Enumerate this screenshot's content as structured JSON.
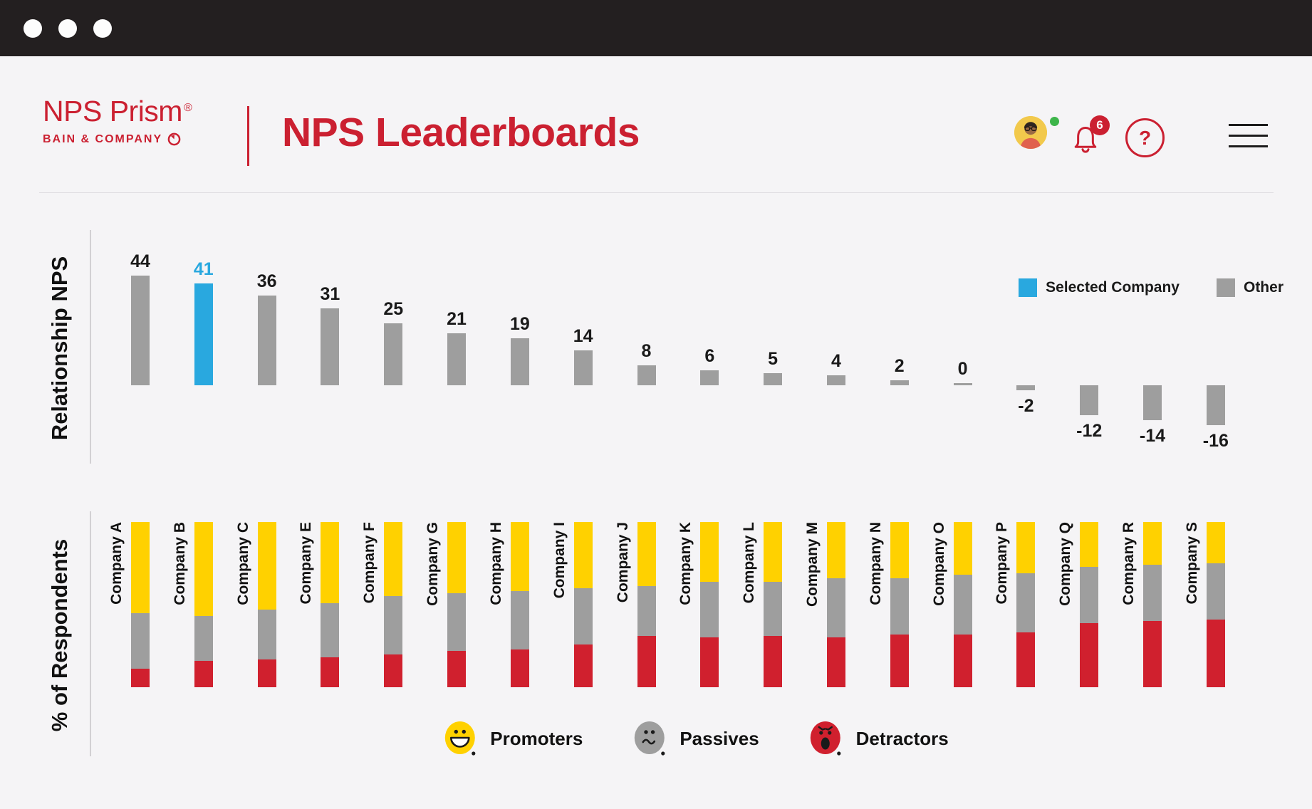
{
  "header": {
    "logo": {
      "name": "NPS Prism",
      "registered_mark": "®",
      "company": "BAIN & COMPANY"
    },
    "title": "NPS Leaderboards",
    "notification_count": "6",
    "help_label": "?"
  },
  "colors": {
    "brand_red": "#CB2031",
    "selected_blue": "#29A8DF",
    "other_gray": "#9E9E9E",
    "promoters_yellow": "#FFD100",
    "passives_gray": "#9E9E9E",
    "detractors_red": "#D0202E",
    "topbar_dark": "#231F20"
  },
  "chart_data": [
    {
      "type": "bar",
      "ylabel": "Relationship NPS",
      "categories": [
        "Company A",
        "Company B",
        "Company C",
        "Company E",
        "Company F",
        "Company G",
        "Company H",
        "Company I",
        "Company J",
        "Company K",
        "Company L",
        "Company M",
        "Company N",
        "Company O",
        "Company P",
        "Company Q",
        "Company R",
        "Company S"
      ],
      "values": [
        44,
        41,
        36,
        31,
        25,
        21,
        19,
        14,
        8,
        6,
        5,
        4,
        2,
        0,
        -2,
        -12,
        -14,
        -16
      ],
      "selected_index": 1,
      "legend": [
        {
          "label": "Selected Company",
          "color": "#29A8DF"
        },
        {
          "label": "Other",
          "color": "#9E9E9E"
        }
      ],
      "ylim": [
        -20,
        50
      ],
      "grid": false,
      "legend_position": "top-right"
    },
    {
      "type": "bar-stacked",
      "ylabel": "% of Respondents",
      "categories": [
        "Company A",
        "Company B",
        "Company C",
        "Company E",
        "Company F",
        "Company G",
        "Company H",
        "Company I",
        "Company J",
        "Company K",
        "Company L",
        "Company M",
        "Company N",
        "Company O",
        "Company P",
        "Company Q",
        "Company R",
        "Company S"
      ],
      "series": [
        {
          "name": "Promoters",
          "color": "#FFD100",
          "values": [
            55,
            57,
            53,
            49,
            45,
            43,
            42,
            40,
            39,
            36,
            36,
            34,
            34,
            32,
            31,
            27,
            26,
            25
          ]
        },
        {
          "name": "Passives",
          "color": "#9E9E9E",
          "values": [
            34,
            27,
            30,
            33,
            35,
            35,
            35,
            34,
            30,
            34,
            33,
            36,
            34,
            36,
            36,
            34,
            34,
            34
          ]
        },
        {
          "name": "Detractors",
          "color": "#D0202E",
          "values": [
            11,
            16,
            17,
            18,
            20,
            22,
            23,
            26,
            31,
            30,
            31,
            30,
            32,
            32,
            33,
            39,
            40,
            41
          ]
        }
      ],
      "legend": [
        "Promoters",
        "Passives",
        "Detractors"
      ],
      "units": "percent",
      "legend_position": "bottom-center"
    }
  ]
}
